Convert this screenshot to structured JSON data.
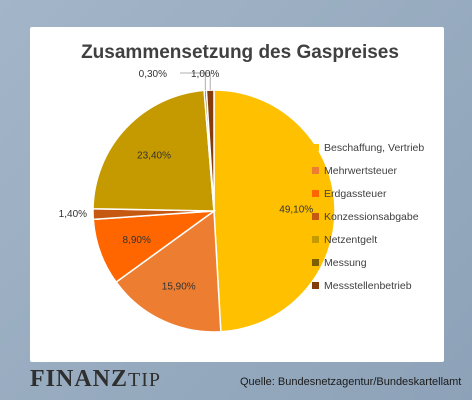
{
  "chart_data": {
    "type": "pie",
    "title": "Zusammensetzung des Gaspreises",
    "slices": [
      {
        "name": "Beschaffung, Vertrieb",
        "value": 49.1,
        "label": "49,10%",
        "color": "#FFC000"
      },
      {
        "name": "Mehrwertsteuer",
        "value": 15.9,
        "label": "15,90%",
        "color": "#ED7D31"
      },
      {
        "name": "Erdgassteuer",
        "value": 8.9,
        "label": "8,90%",
        "color": "#FF6600"
      },
      {
        "name": "Konzessionsabgabe",
        "value": 1.4,
        "label": "1,40%",
        "color": "#C65911"
      },
      {
        "name": "Netzentgelt",
        "value": 23.4,
        "label": "23,40%",
        "color": "#C49A00"
      },
      {
        "name": "Messung",
        "value": 0.3,
        "label": "0,30%",
        "color": "#7F6000"
      },
      {
        "name": "Messstellenbetrieb",
        "value": 1.0,
        "label": "1,00%",
        "color": "#843C0C"
      }
    ],
    "start_angle_deg": 0,
    "direction": "clockwise",
    "legend_position": "right"
  },
  "footer": {
    "brand_part1": "FINANZ",
    "brand_part2": "TIP",
    "source": "Quelle: Bundesnetzagentur/Bundeskartellamt"
  }
}
